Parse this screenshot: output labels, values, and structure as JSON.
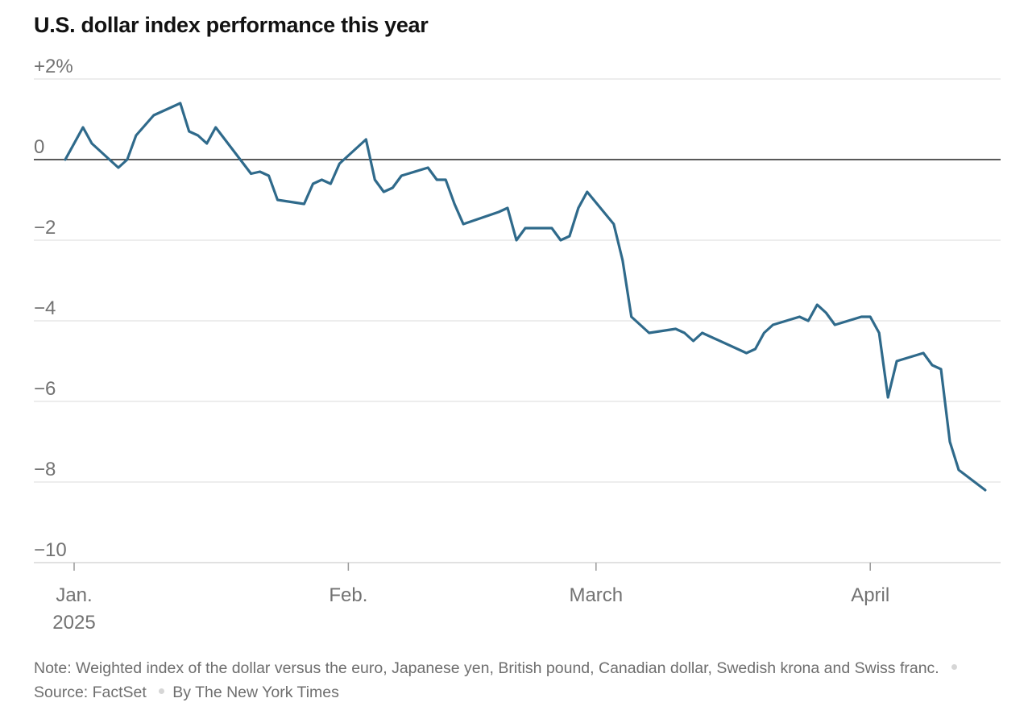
{
  "title": "U.S. dollar index performance this year",
  "note": {
    "text": "Note: Weighted index of the dollar versus the euro, Japanese yen, British pound, Canadian dollar, Swedish krona and Swiss franc.",
    "source": "Source: FactSet",
    "credit": "By The New York Times"
  },
  "colors": {
    "line": "#2f6a8b",
    "grid": "#e2e2e2",
    "zero": "#222222",
    "text": "#727272"
  },
  "chart_data": {
    "type": "line",
    "title": "U.S. dollar index performance this year",
    "xlabel": "",
    "ylabel": "",
    "x_range": [
      "2025-01-01",
      "2025-04-14"
    ],
    "ylim": [
      -10,
      2
    ],
    "grid": true,
    "y_ticks": [
      {
        "value": 2,
        "label": "+2%"
      },
      {
        "value": 0,
        "label": "0"
      },
      {
        "value": -2,
        "label": "−2"
      },
      {
        "value": -4,
        "label": "−4"
      },
      {
        "value": -6,
        "label": "−6"
      },
      {
        "value": -8,
        "label": "−8"
      },
      {
        "value": -10,
        "label": "−10"
      }
    ],
    "x_ticks": [
      {
        "date": "2025-01-01",
        "label": "Jan.",
        "sublabel": "2025"
      },
      {
        "date": "2025-02-01",
        "label": "Feb."
      },
      {
        "date": "2025-03-01",
        "label": "March"
      },
      {
        "date": "2025-04-01",
        "label": "April"
      }
    ],
    "series": [
      {
        "points": [
          [
            "2024-12-31",
            0.0
          ],
          [
            "2025-01-02",
            0.8
          ],
          [
            "2025-01-03",
            0.4
          ],
          [
            "2025-01-06",
            -0.2
          ],
          [
            "2025-01-07",
            0.0
          ],
          [
            "2025-01-08",
            0.6
          ],
          [
            "2025-01-10",
            1.1
          ],
          [
            "2025-01-13",
            1.4
          ],
          [
            "2025-01-14",
            0.7
          ],
          [
            "2025-01-15",
            0.6
          ],
          [
            "2025-01-16",
            0.4
          ],
          [
            "2025-01-17",
            0.8
          ],
          [
            "2025-01-21",
            -0.35
          ],
          [
            "2025-01-22",
            -0.3
          ],
          [
            "2025-01-23",
            -0.4
          ],
          [
            "2025-01-24",
            -1.0
          ],
          [
            "2025-01-27",
            -1.1
          ],
          [
            "2025-01-28",
            -0.6
          ],
          [
            "2025-01-29",
            -0.5
          ],
          [
            "2025-01-30",
            -0.6
          ],
          [
            "2025-01-31",
            -0.1
          ],
          [
            "2025-02-03",
            0.5
          ],
          [
            "2025-02-04",
            -0.5
          ],
          [
            "2025-02-05",
            -0.8
          ],
          [
            "2025-02-06",
            -0.7
          ],
          [
            "2025-02-07",
            -0.4
          ],
          [
            "2025-02-10",
            -0.2
          ],
          [
            "2025-02-11",
            -0.5
          ],
          [
            "2025-02-12",
            -0.5
          ],
          [
            "2025-02-13",
            -1.1
          ],
          [
            "2025-02-14",
            -1.6
          ],
          [
            "2025-02-18",
            -1.3
          ],
          [
            "2025-02-19",
            -1.2
          ],
          [
            "2025-02-20",
            -2.0
          ],
          [
            "2025-02-21",
            -1.7
          ],
          [
            "2025-02-24",
            -1.7
          ],
          [
            "2025-02-25",
            -2.0
          ],
          [
            "2025-02-26",
            -1.9
          ],
          [
            "2025-02-27",
            -1.2
          ],
          [
            "2025-02-28",
            -0.8
          ],
          [
            "2025-03-03",
            -1.6
          ],
          [
            "2025-03-04",
            -2.5
          ],
          [
            "2025-03-05",
            -3.9
          ],
          [
            "2025-03-07",
            -4.3
          ],
          [
            "2025-03-10",
            -4.2
          ],
          [
            "2025-03-11",
            -4.3
          ],
          [
            "2025-03-12",
            -4.5
          ],
          [
            "2025-03-13",
            -4.3
          ],
          [
            "2025-03-18",
            -4.8
          ],
          [
            "2025-03-19",
            -4.7
          ],
          [
            "2025-03-20",
            -4.3
          ],
          [
            "2025-03-21",
            -4.1
          ],
          [
            "2025-03-24",
            -3.9
          ],
          [
            "2025-03-25",
            -4.0
          ],
          [
            "2025-03-26",
            -3.6
          ],
          [
            "2025-03-27",
            -3.8
          ],
          [
            "2025-03-28",
            -4.1
          ],
          [
            "2025-03-31",
            -3.9
          ],
          [
            "2025-04-01",
            -3.9
          ],
          [
            "2025-04-02",
            -4.3
          ],
          [
            "2025-04-03",
            -5.9
          ],
          [
            "2025-04-04",
            -5.0
          ],
          [
            "2025-04-07",
            -4.8
          ],
          [
            "2025-04-08",
            -5.1
          ],
          [
            "2025-04-09",
            -5.2
          ],
          [
            "2025-04-10",
            -7.0
          ],
          [
            "2025-04-11",
            -7.7
          ],
          [
            "2025-04-14",
            -8.2
          ]
        ]
      }
    ]
  }
}
